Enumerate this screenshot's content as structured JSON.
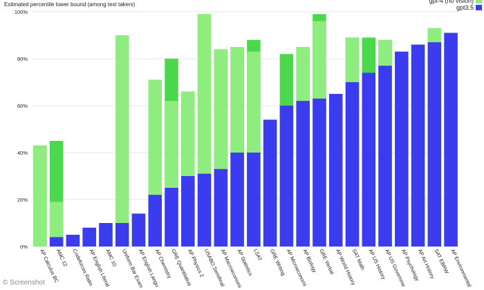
{
  "chart_data": {
    "type": "bar",
    "title": "",
    "ylabel": "Estimated percentile lower bound (among test takers)",
    "xlabel": "",
    "ylim": [
      0,
      100
    ],
    "yticks": [
      0,
      20,
      40,
      60,
      80,
      100
    ],
    "ytick_labels": [
      "0%",
      "20%",
      "40%",
      "60%",
      "80%",
      "100%"
    ],
    "grid": true,
    "legend_position": "top-right",
    "colors": {
      "gpt4": "#4cd84c",
      "gpt4_no_vision": "#8fec7f",
      "gpt35": "#3b3bf0"
    },
    "categories": [
      "AP Calculus BC",
      "AMC 12",
      "Codeforces Rating",
      "AP English Literature",
      "AMC 10",
      "Uniform Bar Exam",
      "AP English Language",
      "AP Chemistry",
      "GRE Quantitative",
      "AP Physics 2",
      "USABO Semifinal",
      "AP Macroeconomics",
      "AP Statistics",
      "LSAT",
      "GRE Writing",
      "AP Microeconomics",
      "AP Biology",
      "GRE Verbal",
      "AP World History",
      "SAT Math",
      "AP US History",
      "AP US Government",
      "AP Psychology",
      "AP Art History",
      "SAT EBRW",
      "AP Environmental Science"
    ],
    "tick_labels_visible": [
      "AP Calculus BC",
      "AMC 12",
      "Codeforces Ratin",
      "AP English Literat",
      "AMC 10",
      "Uniform Bar Exam",
      "AP English Langu",
      "AP Chemistry",
      "GRE Quantitative",
      "AP Physics 2",
      "USABO Semifinal",
      "AP Macroeconomi",
      "AP Statistics",
      "LSAT",
      "GRE Writing",
      "AP Microeconomi",
      "AP Biology",
      "GRE Verbal",
      "AP World History",
      "SAT Math",
      "AP US History",
      "AP US Governme",
      "AP Psychology",
      "AP Art History",
      "SAT EBRW",
      "AP Environmental"
    ],
    "series": [
      {
        "name": "gpt3.5",
        "color_key": "gpt35",
        "values": [
          0,
          4,
          5,
          8,
          10,
          10,
          14,
          22,
          25,
          30,
          31,
          33,
          40,
          40,
          54,
          60,
          62,
          63,
          65,
          70,
          74,
          77,
          83,
          86,
          87,
          91
        ]
      },
      {
        "name": "gpt-4 (no vision)",
        "color_key": "gpt4_no_vision",
        "values": [
          43,
          19,
          5,
          8,
          10,
          90,
          14,
          71,
          62,
          66,
          99,
          84,
          85,
          83,
          54,
          60,
          85,
          96,
          65,
          89,
          74,
          88,
          83,
          86,
          93,
          91
        ]
      },
      {
        "name": "gpt-4",
        "color_key": "gpt4",
        "values": [
          43,
          45,
          5,
          8,
          10,
          90,
          14,
          71,
          80,
          66,
          99,
          84,
          85,
          88,
          54,
          82,
          85,
          99,
          65,
          89,
          89,
          88,
          83,
          86,
          93,
          91
        ]
      }
    ],
    "legend": [
      {
        "label": "gpt-4 (no vision)",
        "color_key": "gpt4_no_vision"
      },
      {
        "label": "gpt3.5",
        "color_key": "gpt35"
      }
    ]
  },
  "watermark": "© Screenshot"
}
